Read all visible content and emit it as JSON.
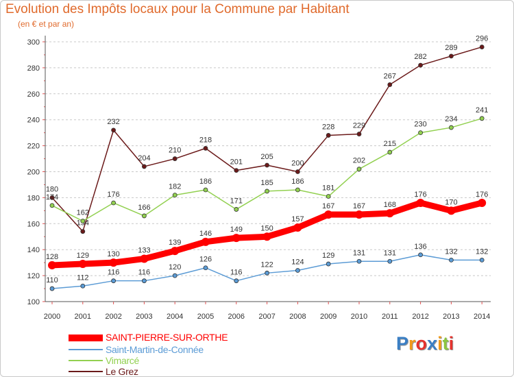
{
  "header": {
    "title": "Evolution des Impôts locaux pour la Commune par Habitant",
    "subtitle": "(en € et par an)"
  },
  "chart_data": {
    "type": "line",
    "title": "Evolution des Impôts locaux pour la Commune par Habitant",
    "subtitle": "(en € et par an)",
    "xlabel": "",
    "ylabel": "",
    "x": [
      "2000",
      "2001",
      "2002",
      "2003",
      "2004",
      "2005",
      "2006",
      "2007",
      "2008",
      "2009",
      "2010",
      "2011",
      "2012",
      "2013",
      "2014"
    ],
    "ylim": [
      100,
      300
    ],
    "yticks": [
      100,
      120,
      140,
      160,
      180,
      200,
      220,
      240,
      260,
      280,
      300
    ],
    "grid": "horizontal dashed",
    "legend": "bottom-left",
    "series": [
      {
        "name": "SAINT-PIERRE-SUR-ORTHE",
        "color": "#ff0000",
        "values": [
          128,
          129,
          130,
          133,
          139,
          146,
          149,
          150,
          157,
          167,
          167,
          168,
          176,
          170,
          176
        ]
      },
      {
        "name": "Saint-Martin-de-Connée",
        "color": "#5b9bd5",
        "values": [
          110,
          112,
          116,
          116,
          120,
          126,
          116,
          122,
          124,
          129,
          131,
          131,
          136,
          132,
          132
        ]
      },
      {
        "name": "Vimarcé",
        "color": "#92d050",
        "values": [
          174,
          162,
          176,
          166,
          182,
          186,
          171,
          185,
          186,
          181,
          202,
          215,
          230,
          234,
          241
        ]
      },
      {
        "name": "Le Grez",
        "color": "#6b1a1a",
        "values": [
          180,
          154,
          232,
          204,
          210,
          218,
          201,
          205,
          200,
          228,
          229,
          267,
          282,
          289,
          296
        ]
      }
    ]
  },
  "legend": {
    "items": [
      {
        "label": "SAINT-PIERRE-SUR-ORTHE",
        "color": "#ff0000",
        "thickness": 10
      },
      {
        "label": "Saint-Martin-de-Connée",
        "color": "#5b9bd5",
        "thickness": 2
      },
      {
        "label": "Vimarcé",
        "color": "#92d050",
        "thickness": 2
      },
      {
        "label": "Le Grez",
        "color": "#6b1a1a",
        "thickness": 2
      }
    ]
  },
  "logo": {
    "letters": [
      "P",
      "r",
      "o",
      "x",
      "i",
      "t",
      "i"
    ],
    "colors": [
      "#3b7fc4",
      "#f29a1a",
      "#e5322d",
      "#3b7fc4",
      "#f29a1a",
      "#8cc63f",
      "#e5322d"
    ]
  }
}
